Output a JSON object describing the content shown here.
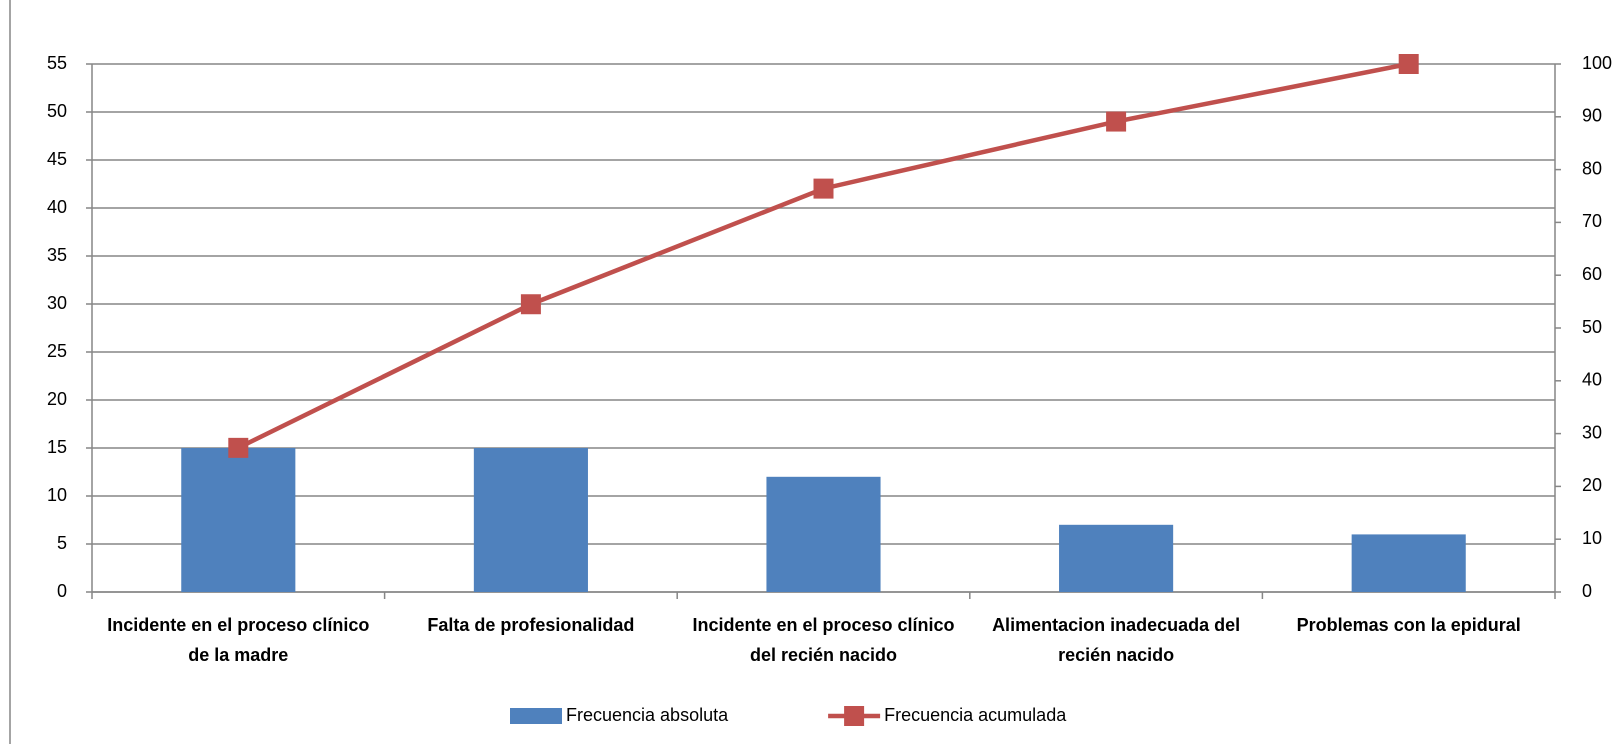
{
  "chart_data": {
    "type": "pareto",
    "categories": [
      "Incidente en el proceso clínico de la madre",
      "Falta de profesionalidad",
      "Incidente en el proceso clínico del recién nacido",
      "Alimentacion inadecuada del recién nacido",
      "Problemas con la epidural"
    ],
    "series": [
      {
        "name": "Frecuencia absoluta",
        "color": "#4f81bd",
        "type": "bar",
        "values": [
          15,
          15,
          12,
          7,
          6
        ]
      },
      {
        "name": "Frecuencia acumulada",
        "color": "#c0504d",
        "type": "line",
        "axis": "y2",
        "values": [
          27.3,
          54.5,
          76.4,
          89.1,
          100
        ]
      }
    ],
    "ylim": [
      0,
      55
    ],
    "yticks": [
      0,
      5,
      10,
      15,
      20,
      25,
      30,
      35,
      40,
      45,
      50,
      55
    ],
    "y2lim": [
      0,
      100
    ],
    "y2ticks": [
      0,
      10,
      20,
      30,
      40,
      50,
      60,
      70,
      80,
      90,
      100
    ],
    "grid": true,
    "legend": "bottom"
  }
}
